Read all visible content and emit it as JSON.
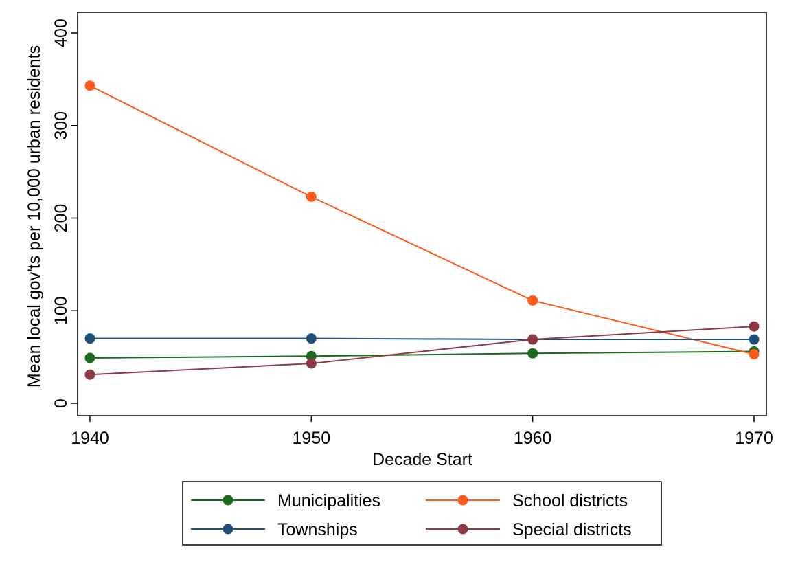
{
  "chart_data": {
    "type": "line",
    "title": "",
    "xlabel": "Decade Start",
    "ylabel": "Mean local gov'ts per 10,000 urban residents",
    "x": [
      1940,
      1950,
      1960,
      1970
    ],
    "x_ticks": [
      "1940",
      "1950",
      "1960",
      "1970"
    ],
    "y_ticks": [
      "0",
      "100",
      "200",
      "300",
      "400"
    ],
    "xlim": [
      1940,
      1970
    ],
    "ylim": [
      0,
      400
    ],
    "grid": false,
    "legend_position": "bottom",
    "series": [
      {
        "name": "Municipalities",
        "color": "#1a6b1a",
        "values": [
          49,
          51,
          54,
          56
        ]
      },
      {
        "name": "School districts",
        "color": "#ff5a1a",
        "values": [
          343,
          223,
          111,
          53
        ]
      },
      {
        "name": "Townships",
        "color": "#1f4e79",
        "values": [
          70,
          70,
          69,
          69
        ]
      },
      {
        "name": "Special districts",
        "color": "#8e3a45",
        "values": [
          31,
          43,
          69,
          83
        ]
      }
    ]
  }
}
